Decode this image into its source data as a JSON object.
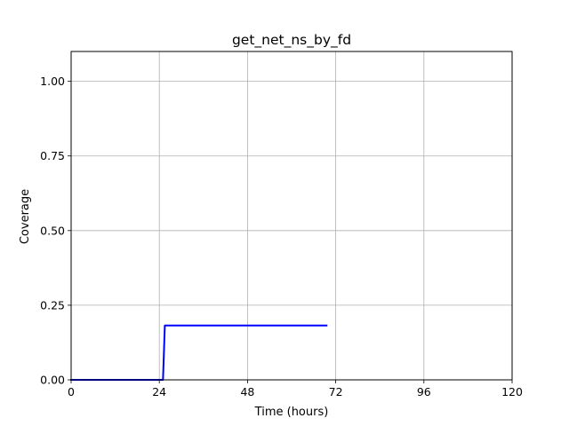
{
  "chart_data": {
    "type": "line",
    "title": "get_net_ns_by_fd",
    "xlabel": "Time (hours)",
    "ylabel": "Coverage",
    "xlim": [
      0,
      120
    ],
    "ylim": [
      0,
      1.1
    ],
    "xticks": [
      0,
      24,
      48,
      72,
      96,
      120
    ],
    "xtick_labels": [
      "0",
      "24",
      "48",
      "72",
      "96",
      "120"
    ],
    "yticks": [
      0,
      0.25,
      0.5,
      0.75,
      1.0
    ],
    "ytick_labels": [
      "0.00",
      "0.25",
      "0.50",
      "0.75",
      "1.00"
    ],
    "grid": true,
    "legend": "none",
    "series": [
      {
        "color": "#0000ff",
        "x": [
          0,
          25,
          25.5,
          69.5
        ],
        "y": [
          0,
          0,
          0.182,
          0.182
        ]
      }
    ]
  }
}
